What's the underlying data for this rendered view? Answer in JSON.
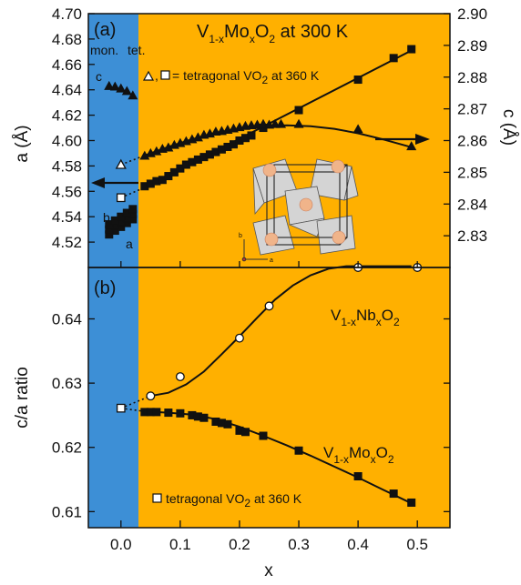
{
  "figure": {
    "x_axis_label": "x",
    "x_ticks": [
      "0.0",
      "0.1",
      "0.2",
      "0.3",
      "0.4",
      "0.5"
    ],
    "colors": {
      "monoclinic_band": "#3d8fd6",
      "tetragonal_band": "#ffb000",
      "ink": "#111111"
    }
  },
  "chart_data": [
    {
      "type": "scatter",
      "panel_label": "(a)",
      "title_main": "V",
      "title_sub1": "1-x",
      "title_mid": "Mo",
      "title_sub2": "x",
      "title_tail": "O",
      "title_sub3": "2",
      "title_suffix": " at 300 K",
      "phase_label_mon": "mon.",
      "phase_label_tet": "tet.",
      "legend_eq": ",",
      "legend_text": "= tetragonal VO",
      "legend_sub": "2",
      "legend_suffix": " at 360 K",
      "ylabel": "a (Å)",
      "y2label": "c (Å)",
      "ylim": [
        4.5,
        4.7
      ],
      "y2lim": [
        2.82,
        2.9
      ],
      "xlim": [
        -0.055,
        0.555
      ],
      "yticks": [
        "4.52",
        "4.54",
        "4.56",
        "4.58",
        "4.60",
        "4.62",
        "4.64",
        "4.66",
        "4.68",
        "4.70"
      ],
      "y2ticks": [
        "2.83",
        "2.84",
        "2.85",
        "2.86",
        "2.87",
        "2.88",
        "2.89",
        "2.90"
      ],
      "mon_labels": {
        "a": "a",
        "b": "b",
        "c": "c"
      },
      "series": [
        {
          "name": "a",
          "axis": "left",
          "marker": "square",
          "x": [
            0.04,
            0.05,
            0.06,
            0.07,
            0.08,
            0.09,
            0.1,
            0.11,
            0.12,
            0.13,
            0.14,
            0.15,
            0.16,
            0.17,
            0.18,
            0.19,
            0.2,
            0.21,
            0.22,
            0.24,
            0.3,
            0.4,
            0.46,
            0.49
          ],
          "y": [
            4.564,
            4.566,
            4.568,
            4.569,
            4.572,
            4.575,
            4.578,
            4.581,
            4.583,
            4.585,
            4.587,
            4.589,
            4.591,
            4.593,
            4.595,
            4.597,
            4.6,
            4.602,
            4.604,
            4.61,
            4.624,
            4.648,
            4.665,
            4.672
          ]
        },
        {
          "name": "c",
          "axis": "right",
          "marker": "triangle",
          "x": [
            0.04,
            0.05,
            0.06,
            0.07,
            0.08,
            0.09,
            0.1,
            0.11,
            0.12,
            0.13,
            0.14,
            0.15,
            0.16,
            0.17,
            0.18,
            0.19,
            0.2,
            0.21,
            0.22,
            0.23,
            0.24,
            0.25,
            0.26,
            0.27,
            0.3,
            0.4,
            0.49
          ],
          "y": [
            2.8552,
            2.856,
            2.8566,
            2.8574,
            2.8578,
            2.8586,
            2.8592,
            2.8598,
            2.8604,
            2.861,
            2.8618,
            2.8622,
            2.8628,
            2.863,
            2.8634,
            2.8638,
            2.8642,
            2.8646,
            2.8648,
            2.865,
            2.8652,
            2.865,
            2.8652,
            2.8652,
            2.8652,
            2.8636,
            2.8582
          ]
        },
        {
          "name": "a (monoclinic)",
          "axis": "left",
          "marker": "square",
          "x": [
            -0.02,
            -0.01,
            0.0,
            0.01,
            0.02,
            -0.02,
            -0.01,
            0.0,
            0.01,
            0.02,
            -0.02,
            -0.01,
            0.0,
            0.01,
            0.02
          ],
          "y": [
            4.526,
            4.529,
            4.532,
            4.535,
            4.538,
            4.53,
            4.533,
            4.536,
            4.539,
            4.542,
            4.534,
            4.537,
            4.54,
            4.543,
            4.546
          ]
        },
        {
          "name": "c (monoclinic)",
          "axis": "right",
          "marker": "triangle",
          "x": [
            -0.02,
            -0.01,
            0.0,
            0.01,
            0.02
          ],
          "y": [
            2.8772,
            2.877,
            2.8764,
            2.8756,
            2.8742
          ]
        },
        {
          "name": "tetragonal c at 360 K",
          "axis": "right",
          "marker": "triangle-open",
          "x": [
            0.0
          ],
          "y": [
            2.8524
          ]
        },
        {
          "name": "tetragonal a at 360 K",
          "axis": "left",
          "marker": "square-open",
          "x": [
            0.0
          ],
          "y": [
            4.555
          ]
        }
      ],
      "fit_lines": [
        {
          "axis": "left",
          "x": [
            0.04,
            0.49
          ],
          "y": [
            4.563,
            4.671
          ]
        },
        {
          "axis": "right",
          "x": [
            0.04,
            0.08,
            0.12,
            0.16,
            0.2,
            0.24,
            0.28,
            0.32,
            0.36,
            0.4,
            0.44,
            0.49
          ],
          "y": [
            2.8553,
            2.858,
            2.8604,
            2.8624,
            2.8638,
            2.8646,
            2.8648,
            2.8645,
            2.8637,
            2.8623,
            2.8605,
            2.8579
          ]
        }
      ],
      "dotted_links": [
        {
          "axis": "right",
          "x": [
            0.0,
            0.04
          ],
          "y": [
            2.8524,
            2.8553
          ]
        },
        {
          "axis": "left",
          "x": [
            0.0,
            0.04
          ],
          "y": [
            4.555,
            4.563
          ]
        }
      ]
    },
    {
      "type": "scatter",
      "panel_label": "(b)",
      "ylabel": "c/a ratio",
      "ylim": [
        0.6075,
        0.648
      ],
      "xlim": [
        -0.055,
        0.555
      ],
      "yticks": [
        "0.61",
        "0.62",
        "0.63",
        "0.64"
      ],
      "label_nb_main": "V",
      "label_nb_sub1": "1-x",
      "label_nb_mid": "Nb",
      "label_nb_sub2": "x",
      "label_nb_tail": "O",
      "label_nb_sub3": "2",
      "label_mo_main": "V",
      "label_mo_sub1": "1-x",
      "label_mo_mid": "Mo",
      "label_mo_sub2": "x",
      "label_mo_tail": "O",
      "label_mo_sub3": "2",
      "legend_text": "tetragonal VO",
      "legend_sub": "2",
      "legend_suffix": " at 360 K",
      "series": [
        {
          "name": "V1-xNbxO2",
          "marker": "circle-open",
          "x": [
            0.05,
            0.1,
            0.2,
            0.25,
            0.4,
            0.5
          ],
          "y": [
            0.628,
            0.631,
            0.637,
            0.642,
            0.648,
            0.648
          ]
        },
        {
          "name": "V1-xMoxO2",
          "marker": "square",
          "x": [
            0.04,
            0.05,
            0.06,
            0.08,
            0.1,
            0.12,
            0.13,
            0.14,
            0.16,
            0.17,
            0.18,
            0.2,
            0.21,
            0.24,
            0.3,
            0.4,
            0.46,
            0.49
          ],
          "y": [
            0.6255,
            0.6255,
            0.6255,
            0.6254,
            0.6253,
            0.625,
            0.6248,
            0.6246,
            0.624,
            0.6238,
            0.6236,
            0.6226,
            0.6224,
            0.6218,
            0.6195,
            0.6155,
            0.6128,
            0.6114
          ]
        },
        {
          "name": "tetragonal VO2 at 360 K",
          "marker": "square-open",
          "x": [
            0.0
          ],
          "y": [
            0.6261
          ]
        }
      ],
      "fit_lines": [
        {
          "x": [
            0.05,
            0.08,
            0.11,
            0.14,
            0.17,
            0.2,
            0.23,
            0.26,
            0.29,
            0.32,
            0.35,
            0.38,
            0.41,
            0.44,
            0.47,
            0.49
          ],
          "y": [
            0.628,
            0.6285,
            0.6298,
            0.6318,
            0.6345,
            0.6373,
            0.6402,
            0.643,
            0.6452,
            0.6468,
            0.6478,
            0.6482,
            0.6482,
            0.6482,
            0.6482,
            0.6482
          ]
        },
        {
          "x": [
            0.04,
            0.08,
            0.12,
            0.16,
            0.2,
            0.24,
            0.28,
            0.32,
            0.36,
            0.4,
            0.44,
            0.49
          ],
          "y": [
            0.6256,
            0.6254,
            0.6251,
            0.6244,
            0.6232,
            0.6218,
            0.6203,
            0.6187,
            0.617,
            0.6153,
            0.6135,
            0.6113
          ]
        }
      ],
      "dotted_links": [
        {
          "x": [
            0.0,
            0.05
          ],
          "y": [
            0.6261,
            0.628
          ]
        },
        {
          "x": [
            0.0,
            0.04
          ],
          "y": [
            0.6261,
            0.6256
          ]
        }
      ]
    }
  ]
}
